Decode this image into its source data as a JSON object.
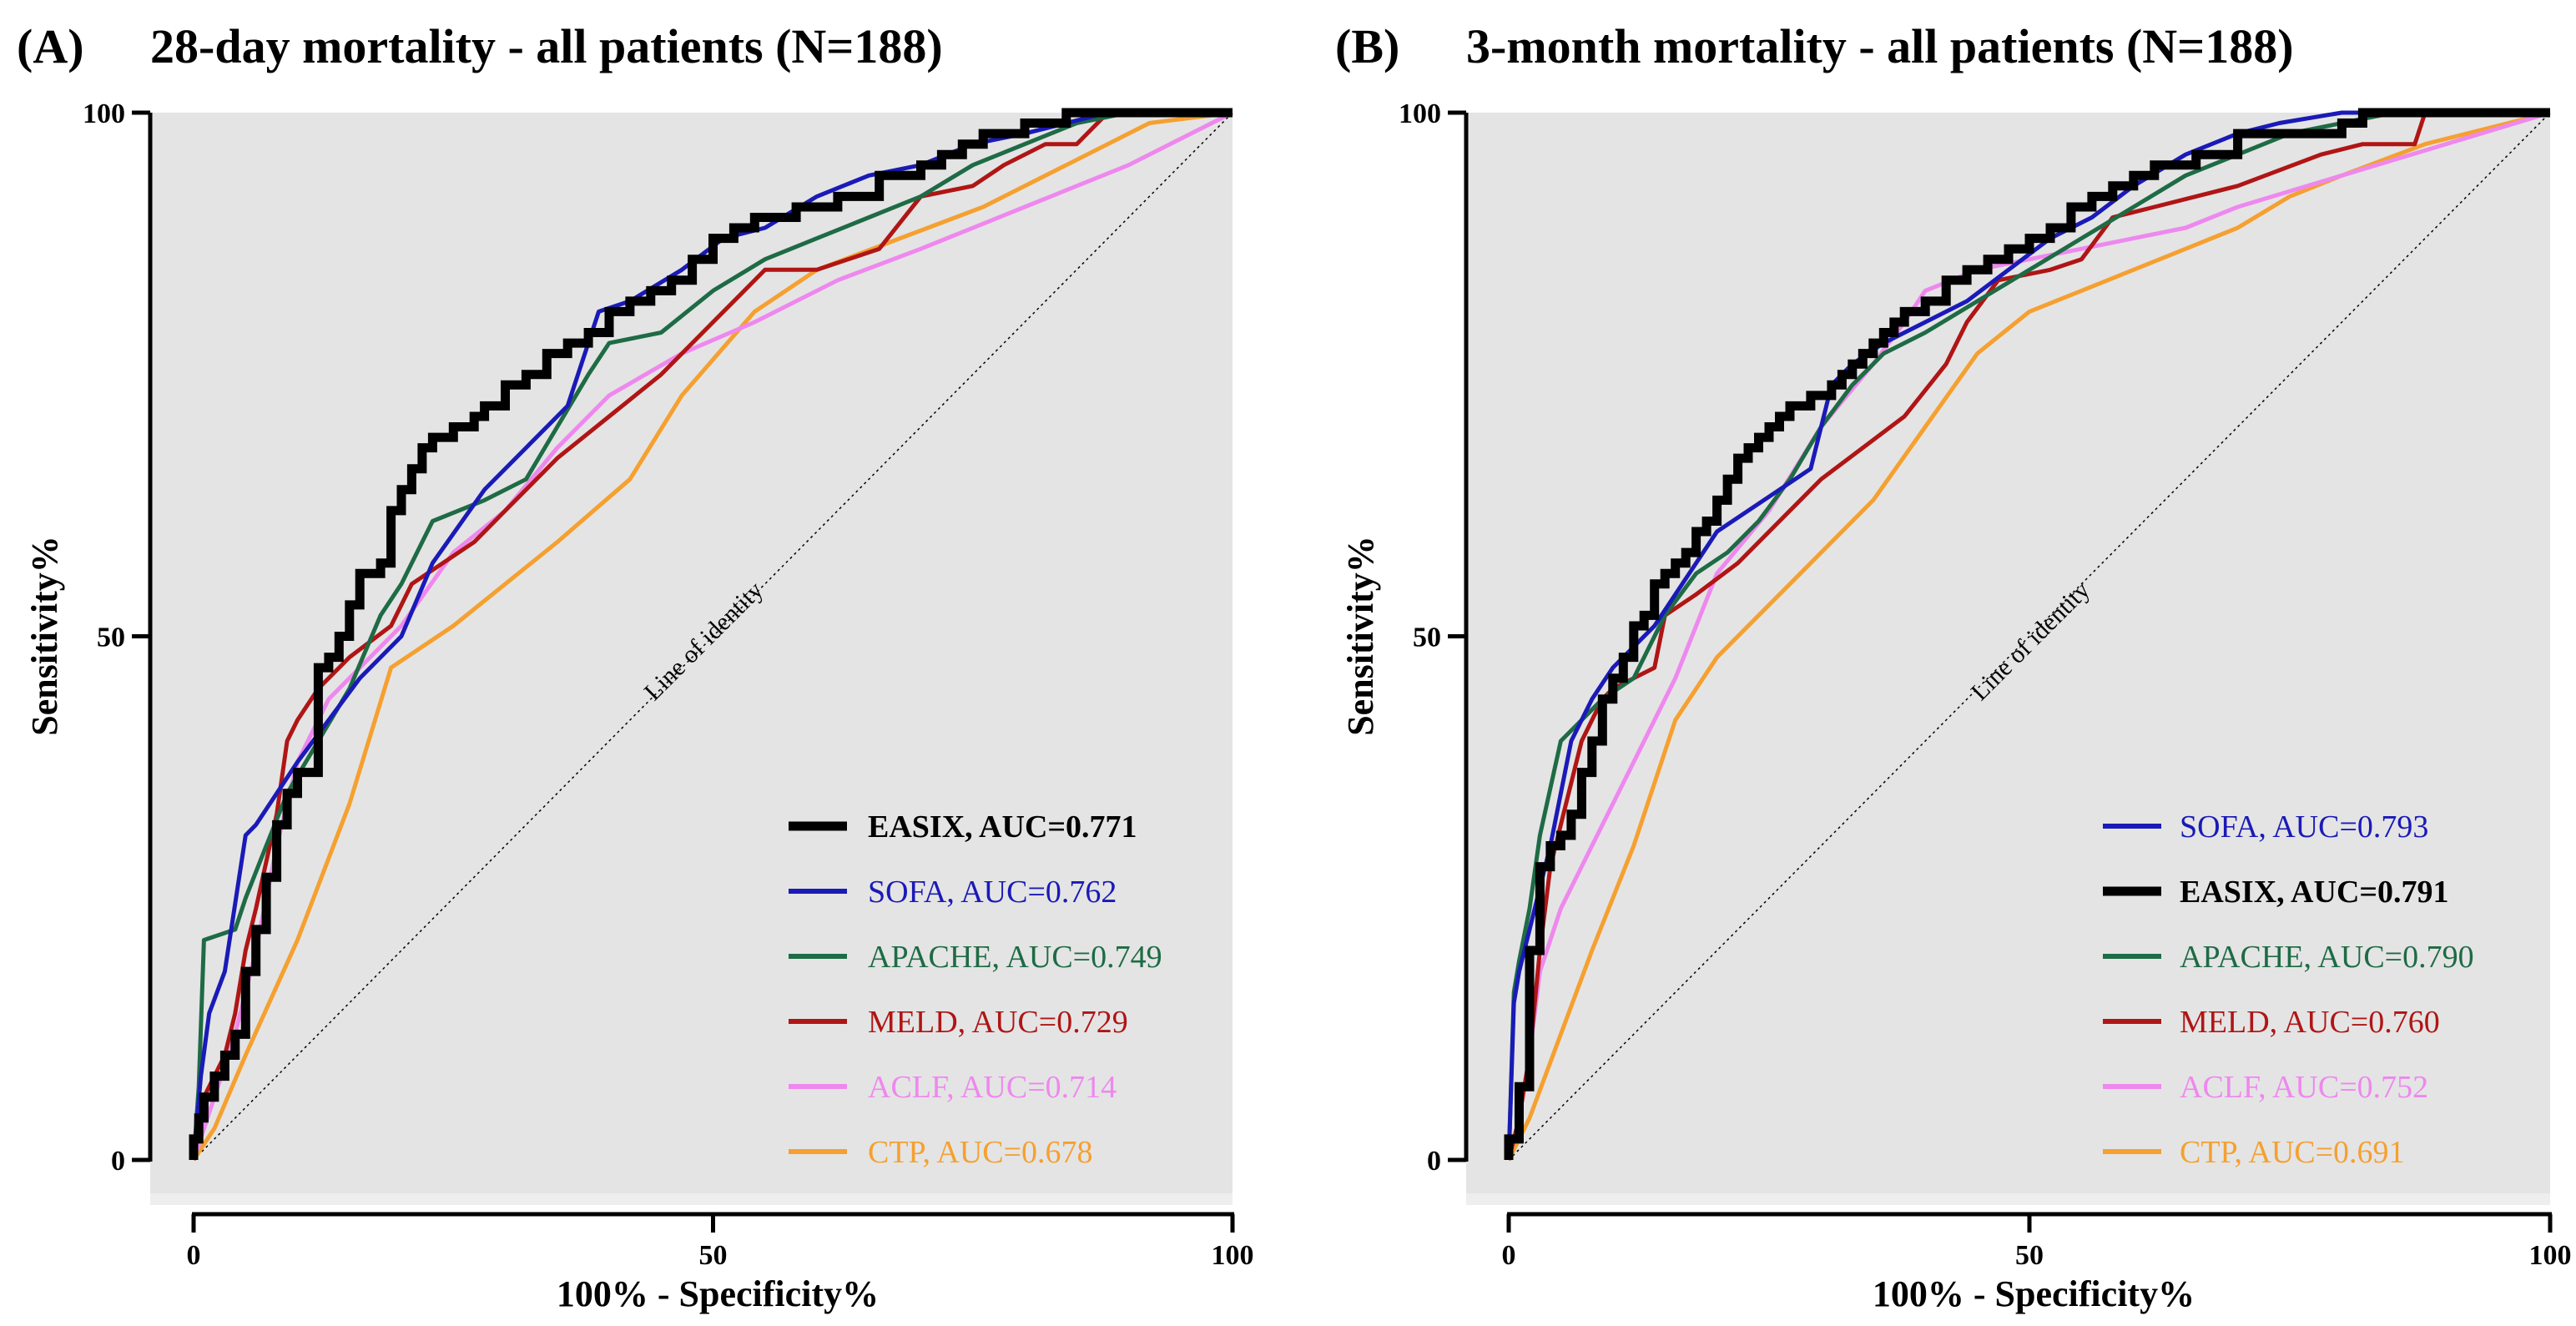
{
  "chart_data": [
    {
      "type": "line",
      "panel_label": "(A)",
      "title": "28-day mortality - all patients (N=188)",
      "xlabel": "100% - Specificity%",
      "ylabel": "Sensitivity%",
      "xlim": [
        0,
        100
      ],
      "ylim": [
        0,
        100
      ],
      "xticks": [
        "0",
        "50",
        "100"
      ],
      "yticks": [
        "0",
        "50",
        "100"
      ],
      "identity_label": "Line of identity",
      "legend": [
        {
          "label": "EASIX, AUC=0.771",
          "series": "EASIX",
          "color": "#000000",
          "bold": true
        },
        {
          "label": "SOFA, AUC=0.762",
          "series": "SOFA",
          "color": "#1a1ab8",
          "bold": false
        },
        {
          "label": "APACHE,  AUC=0.749",
          "series": "APACHE",
          "color": "#1e6b45",
          "bold": false
        },
        {
          "label": "MELD, AUC=0.729",
          "series": "MELD",
          "color": "#b01515",
          "bold": false
        },
        {
          "label": "ACLF,  AUC=0.714",
          "series": "ACLF",
          "color": "#ee88ee",
          "bold": false
        },
        {
          "label": "CTP,  AUC=0.678",
          "series": "CTP",
          "color": "#f5a030",
          "bold": false
        }
      ],
      "series": [
        {
          "name": "CTP",
          "color": "#f5a030",
          "width": 5,
          "step": false,
          "x": [
            0,
            2,
            5,
            10,
            15,
            19,
            25,
            30,
            35,
            42,
            47,
            54,
            60,
            68,
            76,
            84,
            92,
            100
          ],
          "y": [
            0,
            3,
            10,
            21,
            34,
            47,
            51,
            55,
            59,
            65,
            73,
            81,
            85,
            88,
            91,
            95,
            99,
            100
          ]
        },
        {
          "name": "ACLF",
          "color": "#ee88ee",
          "width": 5,
          "step": false,
          "x": [
            0,
            2,
            4,
            6,
            8,
            10,
            13,
            16,
            20,
            25,
            30,
            35,
            40,
            47,
            54,
            62,
            70,
            80,
            90,
            100
          ],
          "y": [
            0,
            6,
            12,
            20,
            30,
            38,
            44,
            47,
            51,
            58,
            62,
            68,
            73,
            77,
            80,
            84,
            87,
            91,
            95,
            100
          ]
        },
        {
          "name": "MELD",
          "color": "#b01515",
          "width": 5,
          "step": false,
          "x": [
            0,
            1,
            3,
            4,
            5,
            6,
            8,
            9,
            10,
            12,
            15,
            19,
            21,
            24,
            27,
            30,
            35,
            40,
            45,
            50,
            55,
            60,
            66,
            70,
            75,
            78,
            82,
            85,
            88,
            92,
            100
          ],
          "y": [
            0,
            6,
            10,
            14,
            20,
            24,
            33,
            40,
            42,
            45,
            48,
            51,
            55,
            57,
            59,
            62,
            67,
            71,
            75,
            80,
            85,
            85,
            87,
            92,
            93,
            95,
            97,
            97,
            100,
            100,
            100
          ]
        },
        {
          "name": "APACHE",
          "color": "#1e6b45",
          "width": 5,
          "step": false,
          "x": [
            0,
            0.5,
            1,
            4,
            5,
            7,
            9,
            12,
            15,
            18,
            20,
            23,
            28,
            32,
            35,
            38,
            40,
            45,
            50,
            55,
            60,
            65,
            70,
            75,
            80,
            85,
            90,
            100
          ],
          "y": [
            0,
            7,
            21,
            22,
            25,
            30,
            35,
            40,
            45,
            52,
            55,
            61,
            63,
            65,
            70,
            75,
            78,
            79,
            83,
            86,
            88,
            90,
            92,
            95,
            97,
            99,
            100,
            100
          ]
        },
        {
          "name": "SOFA",
          "color": "#1a1ab8",
          "width": 5,
          "step": false,
          "x": [
            0,
            0.7,
            1.5,
            3,
            5,
            6,
            8,
            10,
            13,
            16,
            20,
            23,
            28,
            32,
            36,
            39,
            42,
            47,
            51,
            55,
            60,
            65,
            70,
            75,
            80,
            88,
            100
          ],
          "y": [
            0,
            8,
            14,
            18,
            31,
            32,
            35,
            38,
            42,
            46,
            50,
            57,
            64,
            68,
            72,
            81,
            82,
            85,
            88,
            89,
            92,
            94,
            95,
            97,
            98,
            100,
            100
          ]
        },
        {
          "name": "EASIX",
          "color": "#000000",
          "width": 11,
          "step": true,
          "x": [
            0,
            0.5,
            1,
            2,
            3,
            4,
            5,
            6,
            7,
            8,
            9,
            10,
            12,
            13,
            14,
            15,
            16,
            18,
            19,
            20,
            21,
            22,
            23,
            25,
            26,
            27,
            28,
            30,
            32,
            34,
            36,
            38,
            40,
            42,
            44,
            46,
            48,
            50,
            52,
            54,
            58,
            62,
            66,
            70,
            72,
            74,
            76,
            80,
            84,
            86,
            90,
            100
          ],
          "y": [
            0,
            2,
            4,
            6,
            8,
            10,
            12,
            18,
            22,
            27,
            32,
            35,
            37,
            47,
            48,
            50,
            53,
            56,
            57,
            62,
            64,
            66,
            68,
            69,
            70,
            70,
            71,
            72,
            74,
            75,
            77,
            78,
            79,
            81,
            82,
            83,
            84,
            86,
            88,
            89,
            90,
            91,
            92,
            94,
            95,
            96,
            97,
            98,
            99,
            100,
            100,
            100
          ]
        }
      ]
    },
    {
      "type": "line",
      "panel_label": "(B)",
      "title": "3-month mortality - all patients (N=188)",
      "xlabel": "100% - Specificity%",
      "ylabel": "Sensitivity%",
      "xlim": [
        0,
        100
      ],
      "ylim": [
        0,
        100
      ],
      "xticks": [
        "0",
        "50",
        "100"
      ],
      "yticks": [
        "0",
        "50",
        "100"
      ],
      "identity_label": "Line of identity",
      "legend": [
        {
          "label": "SOFA, AUC=0.793",
          "series": "SOFA",
          "color": "#1a1ab8",
          "bold": false
        },
        {
          "label": "EASIX, AUC=0.791",
          "series": "EASIX",
          "color": "#000000",
          "bold": true
        },
        {
          "label": "APACHE,  AUC=0.790",
          "series": "APACHE",
          "color": "#1e6b45",
          "bold": false
        },
        {
          "label": "MELD, AUC=0.760",
          "series": "MELD",
          "color": "#b01515",
          "bold": false
        },
        {
          "label": "ACLF,  AUC=0.752",
          "series": "ACLF",
          "color": "#ee88ee",
          "bold": false
        },
        {
          "label": "CTP,  AUC=0.691",
          "series": "CTP",
          "color": "#f5a030",
          "bold": false
        }
      ],
      "series": [
        {
          "name": "CTP",
          "color": "#f5a030",
          "width": 5,
          "step": false,
          "x": [
            0,
            2,
            5,
            8,
            12,
            16,
            20,
            25,
            30,
            35,
            40,
            45,
            50,
            55,
            60,
            65,
            70,
            75,
            80,
            88,
            100
          ],
          "y": [
            0,
            4,
            12,
            20,
            30,
            42,
            48,
            53,
            58,
            63,
            70,
            77,
            81,
            83,
            85,
            87,
            89,
            92,
            94,
            97,
            100
          ]
        },
        {
          "name": "ACLF",
          "color": "#ee88ee",
          "width": 5,
          "step": false,
          "x": [
            0,
            1,
            2,
            3,
            5,
            8,
            12,
            16,
            20,
            25,
            30,
            35,
            38,
            40,
            45,
            50,
            55,
            60,
            65,
            70,
            80,
            90,
            100
          ],
          "y": [
            0,
            4,
            10,
            18,
            24,
            30,
            38,
            46,
            56,
            62,
            70,
            76,
            80,
            83,
            85,
            86,
            87,
            88,
            89,
            91,
            94,
            97,
            100
          ]
        },
        {
          "name": "MELD",
          "color": "#b01515",
          "width": 5,
          "step": false,
          "x": [
            0,
            1,
            2,
            3,
            4,
            5,
            6,
            7,
            8,
            9,
            10,
            12,
            14,
            15,
            18,
            22,
            26,
            30,
            34,
            38,
            42,
            44,
            47,
            52,
            55,
            58,
            62,
            70,
            78,
            82,
            87,
            88,
            100
          ],
          "y": [
            0,
            4,
            10,
            20,
            28,
            32,
            36,
            40,
            42,
            44,
            45,
            46,
            47,
            52,
            54,
            57,
            61,
            65,
            68,
            71,
            76,
            80,
            84,
            85,
            86,
            90,
            91,
            93,
            96,
            97,
            97,
            100,
            100
          ]
        },
        {
          "name": "APACHE",
          "color": "#1e6b45",
          "width": 5,
          "step": false,
          "x": [
            0,
            0.5,
            1,
            2,
            3,
            5,
            7,
            9,
            12,
            15,
            18,
            21,
            24,
            27,
            30,
            33,
            36,
            40,
            45,
            50,
            55,
            60,
            65,
            70,
            75,
            80,
            85,
            100
          ],
          "y": [
            0,
            16,
            19,
            24,
            31,
            40,
            42,
            44,
            46,
            52,
            56,
            58,
            61,
            65,
            70,
            74,
            77,
            79,
            82,
            85,
            88,
            91,
            94,
            96,
            98,
            99,
            100,
            100
          ]
        },
        {
          "name": "SOFA",
          "color": "#1a1ab8",
          "width": 5,
          "step": false,
          "x": [
            0,
            0.5,
            1,
            2,
            3,
            4,
            5,
            6,
            8,
            10,
            12,
            14,
            16,
            18,
            20,
            23,
            26,
            29,
            31,
            33,
            36,
            40,
            44,
            48,
            52,
            56,
            60,
            65,
            70,
            74,
            80,
            85,
            100
          ],
          "y": [
            0,
            15,
            18,
            22,
            26,
            30,
            35,
            40,
            44,
            47,
            49,
            51,
            54,
            57,
            60,
            62,
            64,
            66,
            74,
            76,
            78,
            80,
            82,
            85,
            88,
            90,
            93,
            96,
            98,
            99,
            100,
            100,
            100
          ]
        },
        {
          "name": "EASIX",
          "color": "#000000",
          "width": 11,
          "step": true,
          "x": [
            0,
            1,
            2,
            3,
            4,
            5,
            6,
            7,
            8,
            9,
            10,
            11,
            12,
            13,
            14,
            15,
            16,
            17,
            18,
            19,
            20,
            21,
            22,
            23,
            24,
            25,
            26,
            27,
            28,
            29,
            30,
            31,
            32,
            33,
            34,
            35,
            36,
            37,
            38,
            40,
            42,
            44,
            46,
            48,
            50,
            52,
            54,
            56,
            58,
            60,
            62,
            66,
            70,
            74,
            80,
            82,
            85,
            90,
            100
          ],
          "y": [
            0,
            2,
            7,
            20,
            28,
            30,
            31,
            33,
            37,
            40,
            44,
            46,
            48,
            51,
            52,
            55,
            56,
            57,
            58,
            60,
            61,
            63,
            65,
            67,
            68,
            69,
            70,
            71,
            72,
            72,
            73,
            73,
            74,
            75,
            76,
            77,
            78,
            79,
            80,
            81,
            82,
            84,
            85,
            86,
            87,
            88,
            89,
            91,
            92,
            93,
            94,
            95,
            96,
            98,
            98,
            99,
            100,
            100,
            100
          ]
        }
      ]
    }
  ]
}
